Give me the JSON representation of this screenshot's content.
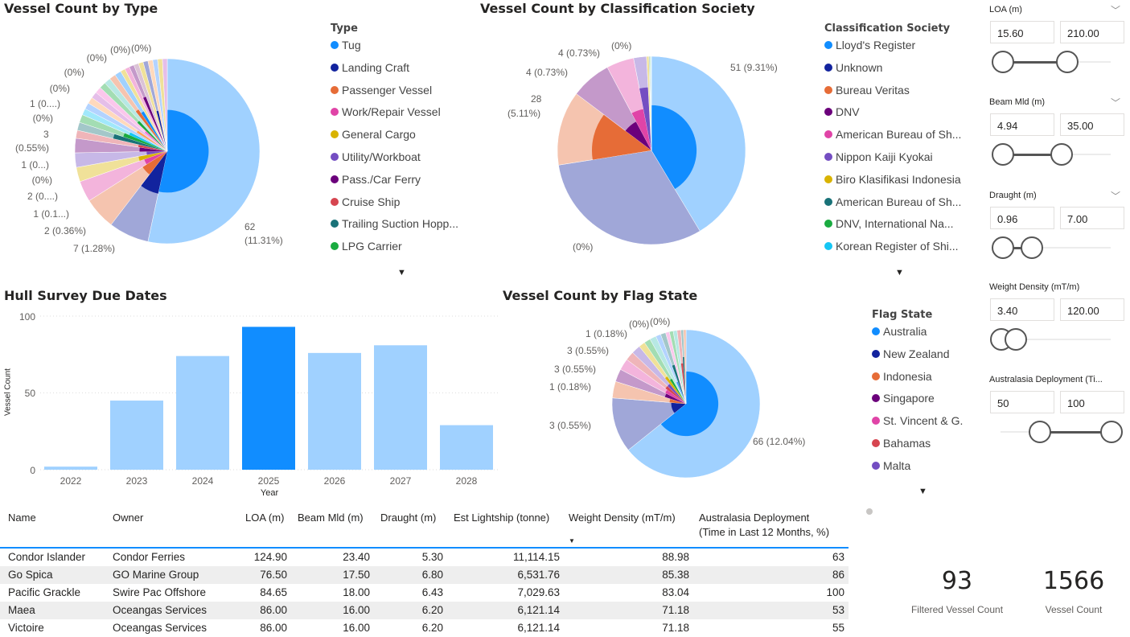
{
  "type_chart": {
    "title": "Vessel Count by Type",
    "legend_title": "Type",
    "legend": [
      {
        "label": "Tug",
        "color": "#118DFF"
      },
      {
        "label": "Landing Craft",
        "color": "#12239E"
      },
      {
        "label": "Passenger Vessel",
        "color": "#E66C37"
      },
      {
        "label": "Work/Repair Vessel",
        "color": "#E044A7"
      },
      {
        "label": "General Cargo",
        "color": "#D9B300"
      },
      {
        "label": "Utility/Workboat",
        "color": "#744EC2"
      },
      {
        "label": "Pass./Car Ferry",
        "color": "#6B007B"
      },
      {
        "label": "Cruise Ship",
        "color": "#D64550"
      },
      {
        "label": "Trailing Suction Hopp...",
        "color": "#197278"
      },
      {
        "label": "LPG Carrier",
        "color": "#1AAB40"
      }
    ],
    "labels": [
      "62",
      "(11.31%)",
      "7 (1.28%)",
      "2 (0.36%)",
      "1 (0.1...)",
      "2 (0....)",
      "(0%)",
      "1 (0...)",
      "3",
      "(0.55%)",
      "(0%)",
      "1 (0....)",
      "(0%)",
      "(0%)",
      "(0%)",
      "(0%)",
      "(0%)"
    ]
  },
  "class_chart": {
    "title": "Vessel Count by Classification Society",
    "legend_title": "Classification Society",
    "legend": [
      {
        "label": "Lloyd's Register",
        "color": "#118DFF"
      },
      {
        "label": "Unknown",
        "color": "#12239E"
      },
      {
        "label": "Bureau Veritas",
        "color": "#E66C37"
      },
      {
        "label": "DNV",
        "color": "#6B007B"
      },
      {
        "label": "American Bureau of Sh...",
        "color": "#E044A7"
      },
      {
        "label": "Nippon Kaiji Kyokai",
        "color": "#744EC2"
      },
      {
        "label": "Biro Klasifikasi Indonesia",
        "color": "#D9B300"
      },
      {
        "label": "American Bureau of Sh...",
        "color": "#197278"
      },
      {
        "label": "DNV, International Na...",
        "color": "#1AAB40"
      },
      {
        "label": "Korean Register of Shi...",
        "color": "#15C6F4"
      }
    ],
    "labels": [
      "51 (9.31%)",
      "28",
      "(5.11%)",
      "4 (0.73%)",
      "4 (0.73%)",
      "(0%)",
      "(0%)"
    ]
  },
  "flag_chart": {
    "title": "Vessel Count by Flag State",
    "legend_title": "Flag State",
    "legend": [
      {
        "label": "Australia",
        "color": "#118DFF"
      },
      {
        "label": "New Zealand",
        "color": "#12239E"
      },
      {
        "label": "Indonesia",
        "color": "#E66C37"
      },
      {
        "label": "Singapore",
        "color": "#6B007B"
      },
      {
        "label": "St. Vincent & G.",
        "color": "#E044A7"
      },
      {
        "label": "Bahamas",
        "color": "#D64550"
      },
      {
        "label": "Malta",
        "color": "#744EC2"
      }
    ],
    "labels": [
      "66 (12.04%)",
      "3 (0.55%)",
      "1 (0.18%)",
      "3 (0.55%)",
      "3 (0.55%)",
      "1 (0.18%)",
      "(0%)",
      "(0%)"
    ]
  },
  "bar_chart": {
    "title": "Hull Survey Due Dates",
    "xlabel": "Year",
    "ylabel": "Vessel Count",
    "yticks": [
      "0",
      "50",
      "100"
    ]
  },
  "chart_data": [
    {
      "type": "pie",
      "title": "Vessel Count by Type",
      "legend": "right",
      "slices": [
        {
          "name": "Tug",
          "value": 190,
          "highlighted_share": 0.2,
          "color": "#118DFF"
        },
        {
          "name": "Landing Craft",
          "value": 25,
          "highlighted_share": 0.22,
          "color": "#12239E"
        },
        {
          "name": "Passenger Vessel",
          "value": 20,
          "highlighted_share": 0.1,
          "color": "#E66C37"
        },
        {
          "name": "Work/Repair Vessel",
          "value": 13,
          "highlighted_share": 0.07,
          "color": "#E044A7"
        },
        {
          "name": "General Cargo",
          "value": 9,
          "highlighted_share": 0.1,
          "color": "#D9B300"
        },
        {
          "name": "Utility/Workboat",
          "value": 9,
          "highlighted_share": 0.05,
          "color": "#744EC2"
        },
        {
          "name": "Pass./Car Ferry",
          "value": 9,
          "highlighted_share": 0.09,
          "color": "#6B007B"
        },
        {
          "name": "Cruise Ship",
          "value": 5,
          "highlighted_share": 0.1,
          "color": "#D64550"
        },
        {
          "name": "Trailing Suction Hopp...",
          "value": 5,
          "highlighted_share": 0.36,
          "color": "#197278"
        },
        {
          "name": "LPG Carrier",
          "value": 5,
          "highlighted_share": 0.25,
          "color": "#1AAB40"
        },
        {
          "value": 4,
          "highlighted_share": 0.2,
          "color": "#15C6F4"
        },
        {
          "value": 4,
          "highlighted_share": 0,
          "color": "#4092FF"
        },
        {
          "value": 4,
          "highlighted_share": 0.15,
          "color": "#FFA058"
        },
        {
          "value": 4,
          "highlighted_share": 0,
          "color": "#BE5DC9"
        },
        {
          "value": 4,
          "highlighted_share": 0.1,
          "color": "#F472D0"
        },
        {
          "value": 4,
          "highlighted_share": 0.2,
          "color": "#1AAB40"
        },
        {
          "value": 4,
          "highlighted_share": 0,
          "color": "#4AC5BB"
        },
        {
          "value": 4,
          "highlighted_share": 0.3,
          "color": "#E66C37"
        },
        {
          "value": 4,
          "highlighted_share": 0.25,
          "color": "#118DFF"
        },
        {
          "value": 3,
          "highlighted_share": 0,
          "color": "#D9B300"
        },
        {
          "value": 3,
          "highlighted_share": 0,
          "color": "#E044A7"
        },
        {
          "value": 3,
          "highlighted_share": 0.4,
          "color": "#6B007B"
        },
        {
          "value": 3,
          "highlighted_share": 0,
          "color": "#A66999"
        },
        {
          "value": 3,
          "highlighted_share": 0,
          "color": "#D9B300"
        },
        {
          "value": 3,
          "highlighted_share": 0.2,
          "color": "#12239E"
        },
        {
          "value": 3,
          "highlighted_share": 0,
          "color": "#FFA058"
        },
        {
          "value": 3,
          "highlighted_share": 0,
          "color": "#4092FF"
        },
        {
          "value": 3,
          "highlighted_share": 0,
          "color": "#D9B300"
        },
        {
          "value": 3,
          "highlighted_share": 0,
          "color": "#BE5DC9"
        }
      ]
    },
    {
      "type": "pie",
      "title": "Vessel Count by Classification Society",
      "legend": "right",
      "slices": [
        {
          "name": "Lloyd's Register",
          "value": 149,
          "highlighted_share": 0.23,
          "color": "#118DFF"
        },
        {
          "name": "Unknown",
          "value": 112,
          "highlighted_share": 0,
          "color": "#12239E"
        },
        {
          "name": "Bureau Veritas",
          "value": 46,
          "highlighted_share": 0.4,
          "color": "#E66C37"
        },
        {
          "name": "DNV",
          "value": 25,
          "highlighted_share": 0.12,
          "color": "#6B007B"
        },
        {
          "name": "American Bureau of Sh...",
          "value": 17,
          "highlighted_share": 0.2,
          "color": "#E044A7"
        },
        {
          "name": "Nippon Kaiji Kyokai",
          "value": 8,
          "highlighted_share": 0.45,
          "color": "#744EC2"
        },
        {
          "name": "Biro Klasifikasi Indonesia",
          "value": 1.5,
          "highlighted_share": 0,
          "color": "#D9B300"
        },
        {
          "name": "American Bureau of Sh...",
          "value": 0.6,
          "highlighted_share": 0,
          "color": "#197278"
        },
        {
          "name": "DNV, International Na...",
          "value": 0.5,
          "highlighted_share": 0,
          "color": "#1AAB40"
        },
        {
          "name": "Korean Register of Shi...",
          "value": 0.4,
          "highlighted_share": 0,
          "color": "#15C6F4"
        }
      ]
    },
    {
      "type": "pie",
      "title": "Vessel Count by Flag State",
      "legend": "right",
      "slices": [
        {
          "name": "Australia",
          "value": 230,
          "highlighted_share": 0.19,
          "color": "#118DFF"
        },
        {
          "name": "New Zealand",
          "value": 43,
          "highlighted_share": 0.04,
          "color": "#12239E"
        },
        {
          "name": "Indonesia",
          "value": 13,
          "highlighted_share": 0.05,
          "color": "#E66C37"
        },
        {
          "name": "Singapore",
          "value": 10,
          "highlighted_share": 0.09,
          "color": "#6B007B"
        },
        {
          "name": "St. Vincent & G.",
          "value": 9,
          "highlighted_share": 0.1,
          "color": "#E044A7"
        },
        {
          "name": "Bahamas",
          "value": 7,
          "highlighted_share": 0.12,
          "color": "#D64550"
        },
        {
          "name": "Malta",
          "value": 7,
          "highlighted_share": 0.12,
          "color": "#744EC2"
        },
        {
          "value": 5,
          "highlighted_share": 0.2,
          "color": "#D9B300"
        },
        {
          "value": 5,
          "highlighted_share": 0.15,
          "color": "#1AAB40"
        },
        {
          "value": 5,
          "highlighted_share": 0,
          "color": "#4AC5BB"
        },
        {
          "value": 4,
          "highlighted_share": 0.1,
          "color": "#4092FF"
        },
        {
          "value": 4,
          "highlighted_share": 0.3,
          "color": "#197278"
        },
        {
          "value": 3,
          "highlighted_share": 0,
          "color": "#F472D0"
        },
        {
          "value": 3,
          "highlighted_share": 0,
          "color": "#1AAB40"
        },
        {
          "value": 3,
          "highlighted_share": 0,
          "color": "#4AC5BB"
        },
        {
          "value": 3,
          "highlighted_share": 0.3,
          "color": "#D64550"
        },
        {
          "value": 2,
          "highlighted_share": 0.4,
          "color": "#197278"
        },
        {
          "value": 2,
          "highlighted_share": 0,
          "color": "#E66C37"
        }
      ]
    },
    {
      "type": "bar",
      "title": "Hull Survey Due Dates",
      "xlabel": "Year",
      "ylabel": "Vessel Count",
      "ylim": [
        0,
        100
      ],
      "grid": true,
      "categories": [
        "2022",
        "2023",
        "2024",
        "2025",
        "2026",
        "2027",
        "2028"
      ],
      "values": [
        2,
        45,
        74,
        93,
        76,
        81,
        29
      ],
      "highlighted": "2025",
      "color": "#118DFF",
      "faded_color": "#A0D1FF"
    }
  ],
  "slicers": [
    {
      "label": "LOA (m)",
      "min": "15.60",
      "max": "210.00",
      "has_chevron": true
    },
    {
      "label": "Beam Mld (m)",
      "min": "4.94",
      "max": "35.00",
      "has_chevron": true
    },
    {
      "label": "Draught (m)",
      "min": "0.96",
      "max": "7.00",
      "has_chevron": true
    },
    {
      "label": "Weight Density (mT/m)",
      "min": "3.40",
      "max": "120.00",
      "has_chevron": false
    },
    {
      "label": "Australasia Deployment (Ti...",
      "min": "50",
      "max": "100",
      "has_chevron": false
    }
  ],
  "table": {
    "headers": [
      "Name",
      "Owner",
      "LOA (m)",
      "Beam Mld (m)",
      "Draught (m)",
      "Est Lightship (tonne)",
      "Weight Density (mT/m)",
      "Australasia Deployment",
      "(Time in Last 12 Months, %)"
    ],
    "sorted_column": "Weight Density (mT/m)",
    "sort": "descending",
    "rows": [
      [
        "Condor Islander",
        "Condor Ferries",
        "124.90",
        "23.40",
        "5.30",
        "11,114.15",
        "88.98",
        "63"
      ],
      [
        "Go Spica",
        "GO Marine Group",
        "76.50",
        "17.50",
        "6.80",
        "6,531.76",
        "85.38",
        "86"
      ],
      [
        "Pacific Grackle",
        "Swire Pac Offshore",
        "84.65",
        "18.00",
        "6.43",
        "7,029.63",
        "83.04",
        "100"
      ],
      [
        "Maea",
        "Oceangas Services",
        "86.00",
        "16.00",
        "6.20",
        "6,121.14",
        "71.18",
        "53"
      ],
      [
        "Victoire",
        "Oceangas Services",
        "86.00",
        "16.00",
        "6.20",
        "6,121.14",
        "71.18",
        "55"
      ]
    ]
  },
  "cards": [
    {
      "value": "93",
      "label": "Filtered Vessel Count"
    },
    {
      "value": "1566",
      "label": "Vessel Count"
    }
  ]
}
